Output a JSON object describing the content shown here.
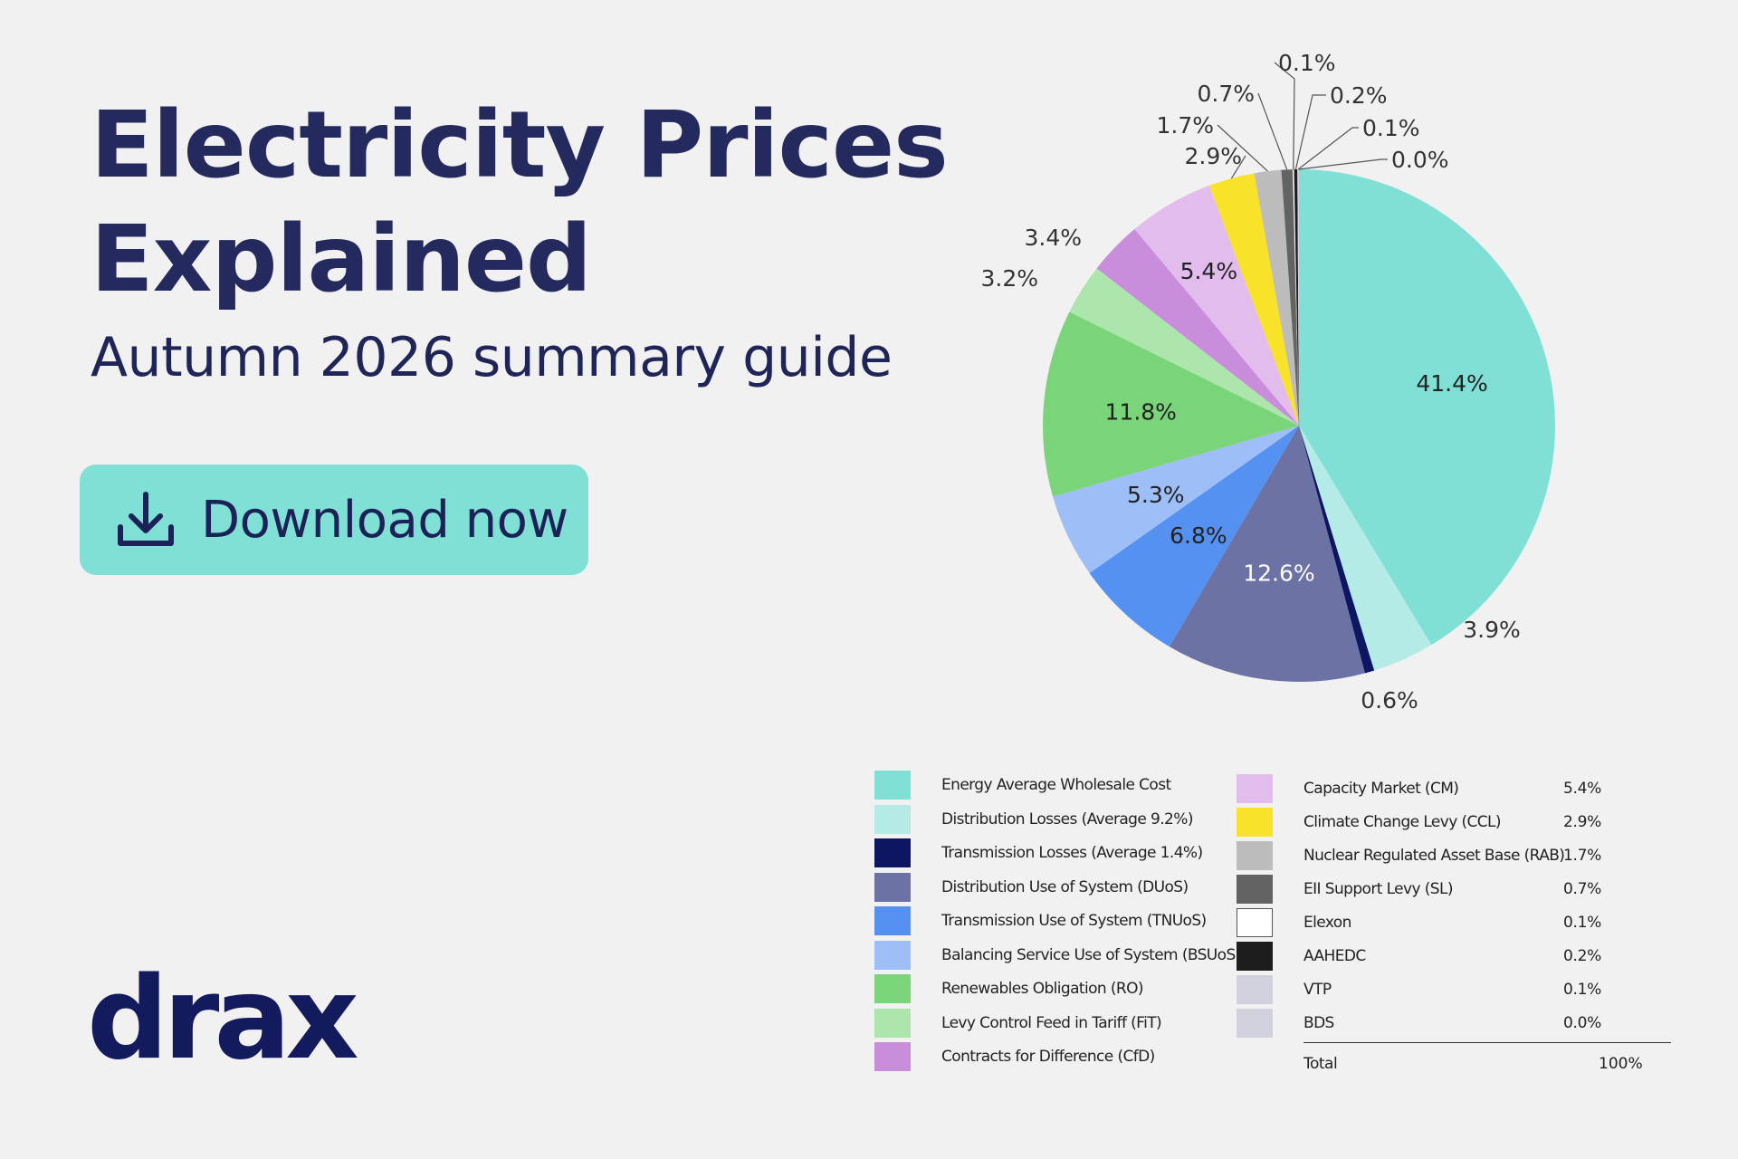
{
  "header": {
    "title_line1": "Electricity Prices",
    "title_line2": "Explained",
    "subtitle": "Autumn 2026 summary guide"
  },
  "download": {
    "label": "Download now",
    "icon": "download-icon"
  },
  "logo": {
    "text": "drax"
  },
  "chart_data": {
    "type": "pie",
    "start": "12 o'clock, clockwise",
    "slices": [
      {
        "label": "Energy Average Wholesale Cost",
        "value": 41.4,
        "label_text": "41.4%",
        "color": "#80e0d5"
      },
      {
        "label": "Distribution Losses (Average 9.2%)",
        "value": 3.9,
        "label_text": "3.9%",
        "color": "#b4ebe6"
      },
      {
        "label": "Transmission Losses (Average 1.4%)",
        "value": 0.6,
        "label_text": "0.6%",
        "color": "#0d1660"
      },
      {
        "label": "Distribution Use of System (DUoS)",
        "value": 12.6,
        "label_text": "12.6%",
        "color": "#6d72a4"
      },
      {
        "label": "Transmission Use of System (TNUoS)",
        "value": 6.8,
        "label_text": "6.8%",
        "color": "#5591f0"
      },
      {
        "label": "Balancing Service Use of System (BSUoS)",
        "value": 5.3,
        "label_text": "5.3%",
        "color": "#9ebef7"
      },
      {
        "label": "Renewables Obligation (RO)",
        "value": 11.8,
        "label_text": "11.8%",
        "color": "#7ad47a"
      },
      {
        "label": "Levy Control Feed in Tariff (FiT)",
        "value": 3.2,
        "label_text": "3.2%",
        "color": "#ade6ad"
      },
      {
        "label": "Contracts for Difference (CfD)",
        "value": 3.4,
        "label_text": "3.4%",
        "color": "#c98ddc"
      },
      {
        "label": "Capacity Market (CM)",
        "value": 5.4,
        "label_text": "5.4%",
        "color": "#e1bced"
      },
      {
        "label": "Climate Change Levy (CCL)",
        "value": 2.9,
        "label_text": "2.9%",
        "color": "#f8e22a"
      },
      {
        "label": "Nuclear Regulated Asset Base (RAB)",
        "value": 1.7,
        "label_text": "1.7%",
        "color": "#bcbcbc"
      },
      {
        "label": "EII Support Levy (SL)",
        "value": 0.7,
        "label_text": "0.7%",
        "color": "#636363"
      },
      {
        "label": "Elexon",
        "value": 0.1,
        "label_text": "0.1%",
        "color": "#ffffff"
      },
      {
        "label": "AAHEDC",
        "value": 0.2,
        "label_text": "0.2%",
        "color": "#1d1d1d"
      },
      {
        "label": "VTP",
        "value": 0.1,
        "label_text": "0.1%",
        "color": "#d0d1dd"
      },
      {
        "label": "BDS",
        "value": 0.0,
        "label_text": "0.0%",
        "color": "#d0d1dd"
      }
    ],
    "legend_left": [
      {
        "label": "Energy Average Wholesale Cost",
        "color": "#80e0d5"
      },
      {
        "label": "Distribution Losses (Average 9.2%)",
        "color": "#b4ebe6"
      },
      {
        "label": "Transmission Losses (Average 1.4%)",
        "color": "#0d1660"
      },
      {
        "label": "Distribution Use of System (DUoS)",
        "color": "#6d72a4"
      },
      {
        "label": "Transmission Use of System (TNUoS)",
        "color": "#5591f0"
      },
      {
        "label": "Balancing Service Use of System (BSUoS)",
        "color": "#9ebef7"
      },
      {
        "label": "Renewables Obligation (RO)",
        "color": "#7ad47a"
      },
      {
        "label": "Levy Control Feed in Tariff (FiT)",
        "color": "#ade6ad"
      },
      {
        "label": "Contracts for Difference (CfD)",
        "color": "#c98ddc"
      }
    ],
    "legend_right": [
      {
        "label": "Capacity Market (CM)",
        "value": "5.4%",
        "color": "#e1bced"
      },
      {
        "label": "Climate Change Levy (CCL)",
        "value": "2.9%",
        "color": "#f8e22a"
      },
      {
        "label": "Nuclear Regulated Asset Base (RAB)",
        "value": "1.7%",
        "color": "#bcbcbc"
      },
      {
        "label": "EII Support Levy (SL)",
        "value": "0.7%",
        "color": "#636363"
      },
      {
        "label": "Elexon",
        "value": "0.1%",
        "color": "#ffffff"
      },
      {
        "label": "AAHEDC",
        "value": "0.2%",
        "color": "#1d1d1d"
      },
      {
        "label": "VTP",
        "value": "0.1%",
        "color": "#d0d1dd"
      },
      {
        "label": "BDS",
        "value": "0.0%",
        "color": "#d0d1dd"
      }
    ],
    "total": {
      "label": "Total",
      "value": "100%"
    }
  }
}
